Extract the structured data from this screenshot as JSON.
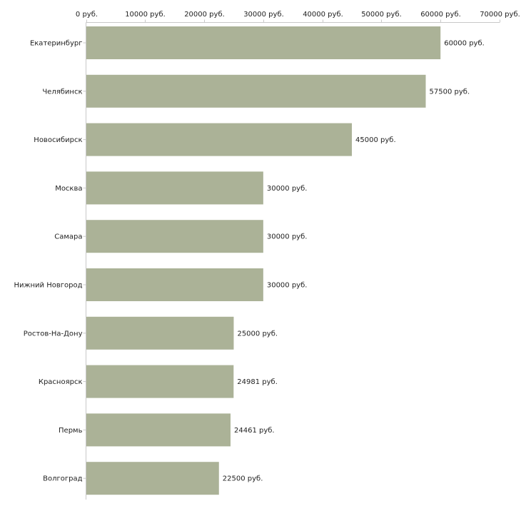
{
  "chart_data": {
    "type": "bar",
    "orientation": "horizontal",
    "title": "",
    "xlabel": "",
    "ylabel": "",
    "unit_suffix": " руб.",
    "xlim": [
      0,
      70000
    ],
    "x_ticks": [
      0,
      10000,
      20000,
      30000,
      40000,
      50000,
      60000,
      70000
    ],
    "x_tick_labels": [
      "0 руб.",
      "10000 руб.",
      "20000 руб.",
      "30000 руб.",
      "40000 руб.",
      "50000 руб.",
      "60000 руб.",
      "70000 руб."
    ],
    "x_axis_position": "top",
    "grid": false,
    "bar_color": "#abb297",
    "categories": [
      "Екатеринбург",
      "Челябинск",
      "Новосибирск",
      "Москва",
      "Самара",
      "Нижний Новгород",
      "Ростов-На-Дону",
      "Красноярск",
      "Пермь",
      "Волгоград"
    ],
    "values": [
      60000,
      57500,
      45000,
      30000,
      30000,
      30000,
      25000,
      24981,
      24461,
      22500
    ],
    "value_labels": [
      "60000 руб.",
      "57500 руб.",
      "45000 руб.",
      "30000 руб.",
      "30000 руб.",
      "30000 руб.",
      "25000 руб.",
      "24981 руб.",
      "24461 руб.",
      "22500 руб."
    ]
  }
}
